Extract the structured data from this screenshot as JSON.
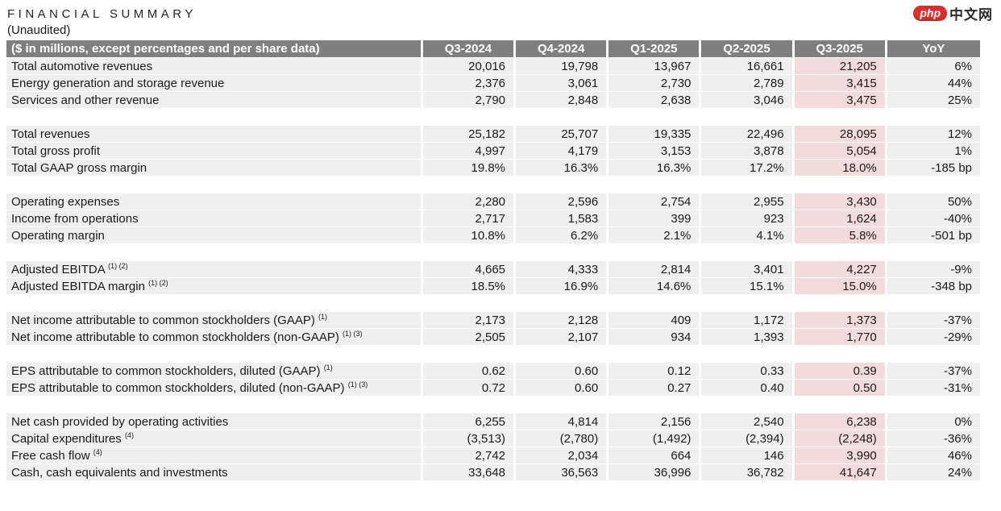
{
  "page": {
    "title": "FINANCIAL SUMMARY",
    "subtitle": "(Unaudited)"
  },
  "logo": {
    "badge": "php",
    "text": "中文网"
  },
  "colors": {
    "header_bg": "#7f7f7f",
    "row_bg": "#efefef",
    "highlight_bg": "#f2dbda",
    "logo_red": "#e42b2b"
  },
  "table": {
    "spec_label": "($ in millions, except percentages and per share data)",
    "columns": [
      "Q3-2024",
      "Q4-2024",
      "Q1-2025",
      "Q2-2025",
      "Q3-2025",
      "YoY"
    ],
    "highlight_column": "Q3-2025",
    "sections": [
      {
        "rows": [
          {
            "label": "Total automotive revenues",
            "sup": "",
            "values": [
              "20,016",
              "19,798",
              "13,967",
              "16,661",
              "21,205",
              "6%"
            ]
          },
          {
            "label": "Energy generation and storage revenue",
            "sup": "",
            "values": [
              "2,376",
              "3,061",
              "2,730",
              "2,789",
              "3,415",
              "44%"
            ]
          },
          {
            "label": "Services and other revenue",
            "sup": "",
            "values": [
              "2,790",
              "2,848",
              "2,638",
              "3,046",
              "3,475",
              "25%"
            ]
          }
        ]
      },
      {
        "rows": [
          {
            "label": "Total revenues",
            "sup": "",
            "values": [
              "25,182",
              "25,707",
              "19,335",
              "22,496",
              "28,095",
              "12%"
            ]
          },
          {
            "label": "Total gross profit",
            "sup": "",
            "values": [
              "4,997",
              "4,179",
              "3,153",
              "3,878",
              "5,054",
              "1%"
            ]
          },
          {
            "label": "Total GAAP gross margin",
            "sup": "",
            "values": [
              "19.8%",
              "16.3%",
              "16.3%",
              "17.2%",
              "18.0%",
              "-185 bp"
            ]
          }
        ]
      },
      {
        "rows": [
          {
            "label": "Operating expenses",
            "sup": "",
            "values": [
              "2,280",
              "2,596",
              "2,754",
              "2,955",
              "3,430",
              "50%"
            ]
          },
          {
            "label": "Income from operations",
            "sup": "",
            "values": [
              "2,717",
              "1,583",
              "399",
              "923",
              "1,624",
              "-40%"
            ]
          },
          {
            "label": "Operating margin",
            "sup": "",
            "values": [
              "10.8%",
              "6.2%",
              "2.1%",
              "4.1%",
              "5.8%",
              "-501 bp"
            ]
          }
        ]
      },
      {
        "rows": [
          {
            "label": "Adjusted EBITDA",
            "sup": "(1) (2)",
            "values": [
              "4,665",
              "4,333",
              "2,814",
              "3,401",
              "4,227",
              "-9%"
            ]
          },
          {
            "label": "Adjusted EBITDA margin",
            "sup": "(1) (2)",
            "values": [
              "18.5%",
              "16.9%",
              "14.6%",
              "15.1%",
              "15.0%",
              "-348 bp"
            ]
          }
        ]
      },
      {
        "rows": [
          {
            "label": "Net income attributable to common stockholders (GAAP)",
            "sup": "(1)",
            "values": [
              "2,173",
              "2,128",
              "409",
              "1,172",
              "1,373",
              "-37%"
            ]
          },
          {
            "label": "Net income attributable to common stockholders (non-GAAP)",
            "sup": "(1) (3)",
            "values": [
              "2,505",
              "2,107",
              "934",
              "1,393",
              "1,770",
              "-29%"
            ]
          }
        ]
      },
      {
        "rows": [
          {
            "label": "EPS attributable to common stockholders, diluted (GAAP)",
            "sup": "(1)",
            "values": [
              "0.62",
              "0.60",
              "0.12",
              "0.33",
              "0.39",
              "-37%"
            ]
          },
          {
            "label": "EPS attributable to common stockholders, diluted (non-GAAP)",
            "sup": "(1) (3)",
            "values": [
              "0.72",
              "0.60",
              "0.27",
              "0.40",
              "0.50",
              "-31%"
            ]
          }
        ]
      },
      {
        "rows": [
          {
            "label": "Net cash provided by operating activities",
            "sup": "",
            "values": [
              "6,255",
              "4,814",
              "2,156",
              "2,540",
              "6,238",
              "0%"
            ]
          },
          {
            "label": "Capital expenditures",
            "sup": "(4)",
            "values": [
              "(3,513)",
              "(2,780)",
              "(1,492)",
              "(2,394)",
              "(2,248)",
              "-36%"
            ]
          },
          {
            "label": "Free cash flow",
            "sup": "(4)",
            "values": [
              "2,742",
              "2,034",
              "664",
              "146",
              "3,990",
              "46%"
            ]
          },
          {
            "label": "Cash, cash equivalents and investments",
            "sup": "",
            "values": [
              "33,648",
              "36,563",
              "36,996",
              "36,782",
              "41,647",
              "24%"
            ]
          }
        ]
      }
    ]
  }
}
